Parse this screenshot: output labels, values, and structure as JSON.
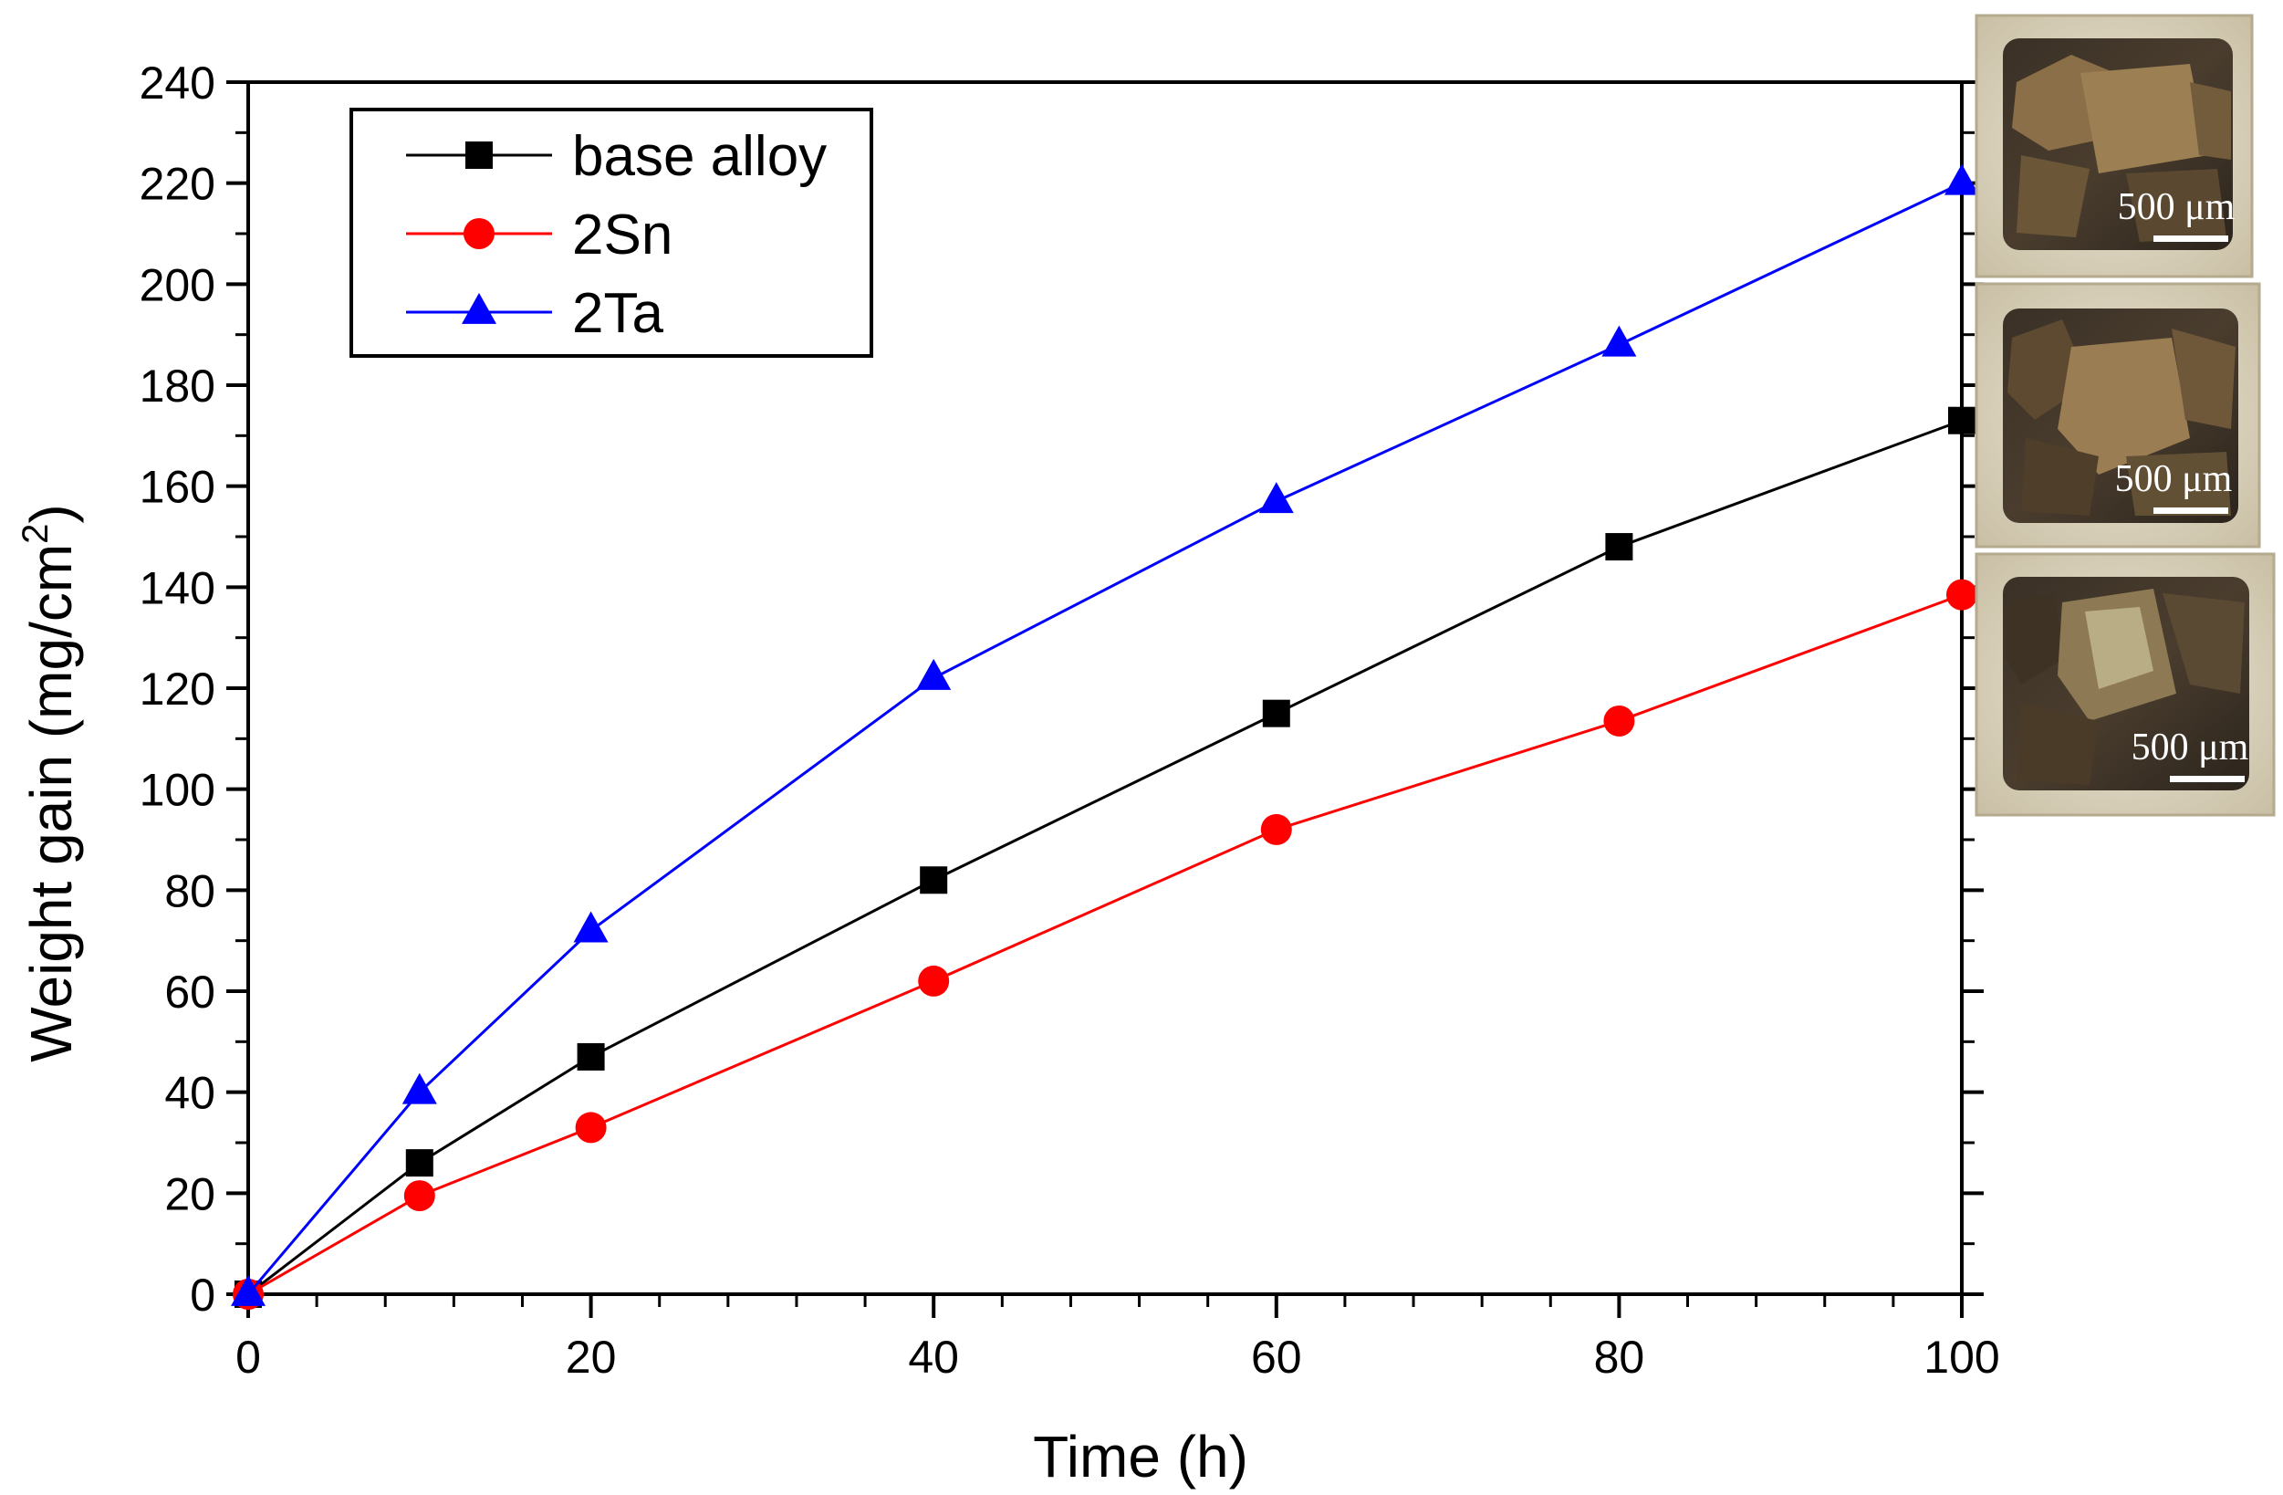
{
  "chart_data": {
    "type": "line",
    "title": "",
    "xlabel": "Time (h)",
    "ylabel": "Weight gain (mg/cm",
    "ylabel_superscript": "2",
    "ylabel_suffix": ")",
    "xlim": [
      0,
      100
    ],
    "ylim": [
      0,
      240
    ],
    "x_major_ticks": [
      0,
      20,
      40,
      60,
      80,
      100
    ],
    "x_minor_step": 4,
    "y_major_ticks": [
      0,
      20,
      40,
      60,
      80,
      100,
      120,
      140,
      160,
      180,
      200,
      220,
      240
    ],
    "y_tick_labels": [
      "0",
      "20",
      "40",
      "60",
      "80",
      "100",
      "120",
      "140",
      "160",
      "180",
      "200",
      "220",
      "240"
    ],
    "x_tick_labels": [
      "0",
      "20",
      "40",
      "60",
      "80",
      "100"
    ],
    "grid": false,
    "legend_position": "top-left",
    "series": [
      {
        "name": "base alloy",
        "color": "#000000",
        "marker": "square",
        "x": [
          0,
          10,
          20,
          40,
          60,
          80,
          100
        ],
        "values": [
          0,
          26,
          47,
          82,
          115,
          148,
          173
        ]
      },
      {
        "name": "2Sn",
        "color": "#ff0000",
        "marker": "circle",
        "x": [
          0,
          10,
          20,
          40,
          60,
          80,
          100
        ],
        "values": [
          0,
          19.5,
          33,
          62,
          92,
          113.5,
          138.5
        ]
      },
      {
        "name": "2Ta",
        "color": "#0000ff",
        "marker": "triangle",
        "x": [
          0,
          10,
          20,
          40,
          60,
          80,
          100
        ],
        "values": [
          0,
          40,
          72,
          122,
          157,
          188,
          220
        ]
      }
    ]
  },
  "photos": [
    {
      "scale_label": "500 μm"
    },
    {
      "scale_label": "500 μm"
    },
    {
      "scale_label": "500 μm"
    }
  ]
}
